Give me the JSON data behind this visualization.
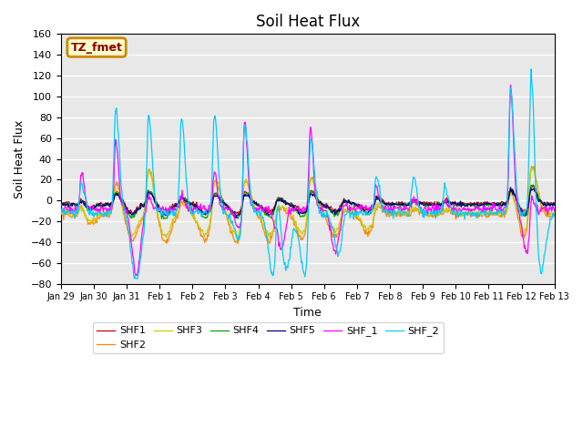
{
  "title": "Soil Heat Flux",
  "xlabel": "Time",
  "ylabel": "Soil Heat Flux",
  "ylim": [
    -80,
    160
  ],
  "xlim": [
    0,
    360
  ],
  "x_tick_labels": [
    "Jan 29",
    "Jan 30",
    "Jan 31",
    "Feb 1",
    "Feb 2",
    "Feb 3",
    "Feb 4",
    "Feb 5",
    "Feb 6",
    "Feb 7",
    "Feb 8",
    "Feb 9",
    "Feb 10",
    "Feb 11",
    "Feb 12",
    "Feb 13"
  ],
  "x_tick_positions": [
    0,
    24,
    48,
    72,
    96,
    120,
    144,
    168,
    192,
    216,
    240,
    264,
    288,
    312,
    336,
    360
  ],
  "series_colors": {
    "SHF1": "#cc0000",
    "SHF2": "#ff8800",
    "SHF3": "#cccc00",
    "SHF4": "#00aa00",
    "SHF5": "#000088",
    "SHF_1": "#ff00ff",
    "SHF_2": "#00ccff"
  },
  "legend_box_label": "TZ_fmet",
  "legend_box_color": "#ffffcc",
  "legend_box_border": "#cc8800",
  "legend_box_text_color": "#880000",
  "plot_bg_color": "#e8e8e8",
  "title_fontsize": 12,
  "axis_fontsize": 9
}
